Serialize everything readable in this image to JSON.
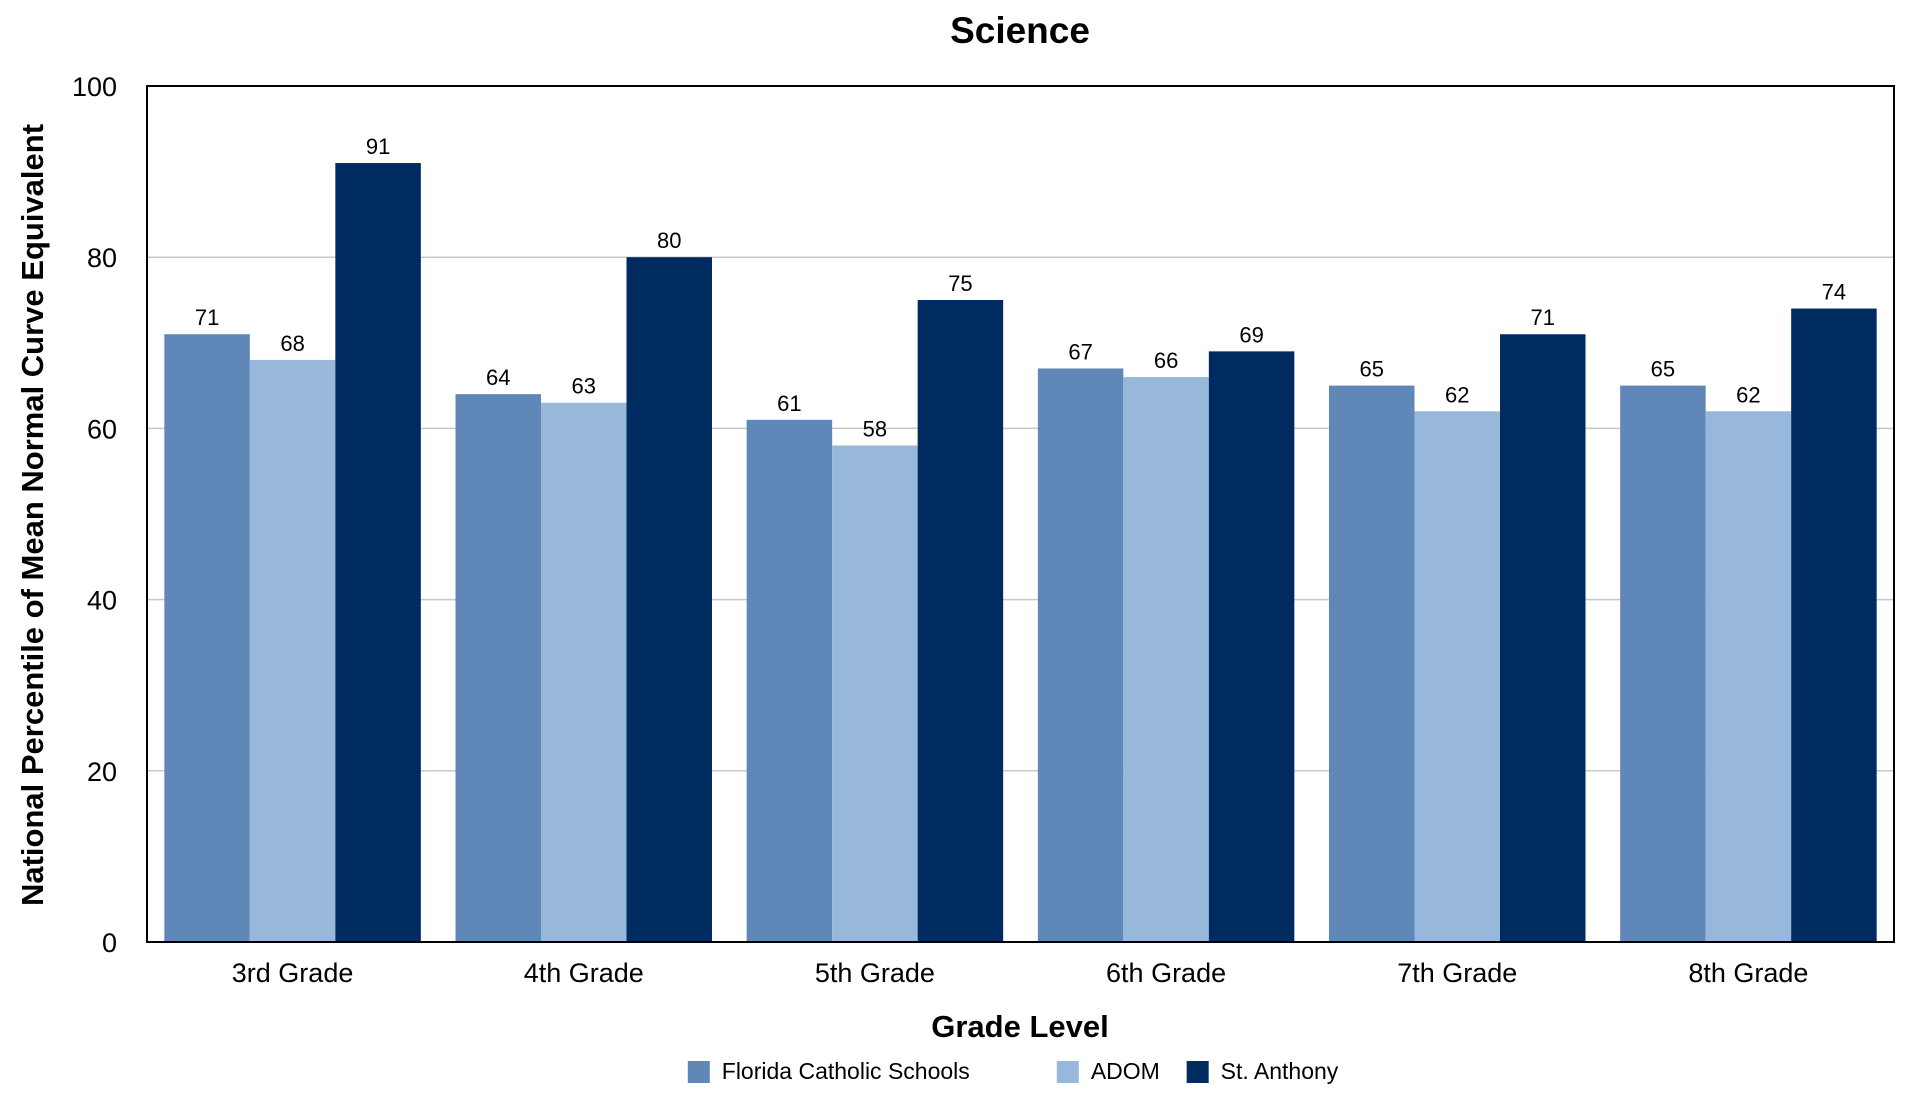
{
  "chart_data": {
    "type": "bar",
    "title": "Science",
    "xlabel": "Grade Level",
    "ylabel": "National Percentile of Mean Normal Curve Equivalent",
    "categories": [
      "3rd Grade",
      "4th Grade",
      "5th Grade",
      "6th Grade",
      "7th Grade",
      "8th Grade"
    ],
    "ylim": [
      0,
      100
    ],
    "yticks": [
      0,
      20,
      40,
      60,
      80,
      100
    ],
    "grid": true,
    "legend_position": "bottom",
    "series": [
      {
        "name": "Florida Catholic Schools",
        "color": "#5f87b8",
        "values": [
          71,
          64,
          61,
          67,
          65,
          65
        ]
      },
      {
        "name": "ADOM",
        "color": "#97b8db",
        "values": [
          68,
          63,
          58,
          66,
          62,
          62
        ]
      },
      {
        "name": "St. Anthony",
        "color": "#002b61",
        "values": [
          91,
          80,
          75,
          69,
          71,
          74
        ]
      }
    ]
  }
}
